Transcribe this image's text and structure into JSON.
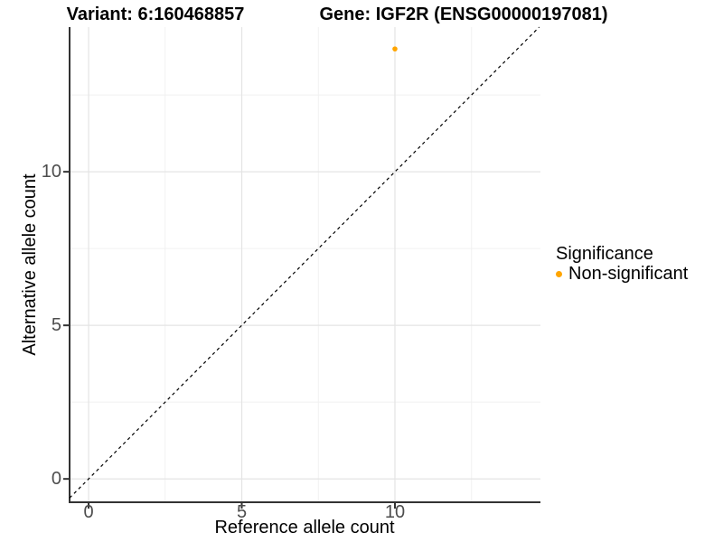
{
  "titles": {
    "left": "Variant: 6:160468857",
    "right": "Gene: IGF2R (ENSG00000197081)"
  },
  "chart_data": {
    "type": "scatter",
    "title_left": "Variant: 6:160468857",
    "title_right": "Gene: IGF2R (ENSG00000197081)",
    "xlabel": "Reference allele count",
    "ylabel": "Alternative allele count",
    "xlim": [
      -0.62,
      14.75
    ],
    "ylim": [
      -0.76,
      14.71
    ],
    "x_ticks": [
      0,
      5,
      10
    ],
    "y_ticks": [
      0,
      5,
      10
    ],
    "x_minor_ticks": [
      2.5,
      7.5,
      12.5
    ],
    "y_minor_ticks": [
      2.5,
      7.5,
      12.5
    ],
    "grid": true,
    "points": [
      {
        "x": 10,
        "y": 14,
        "series": "Non-significant"
      }
    ],
    "reference_line": {
      "slope": 1,
      "intercept": 0,
      "style": "dashed",
      "color": "#000000"
    },
    "legend": {
      "title": "Significance",
      "position": "right",
      "items": [
        {
          "label": "Non-significant",
          "color": "#FFA500"
        }
      ]
    },
    "colors": {
      "point": "#FFA500",
      "axis_line": "#333333",
      "tick_mark": "#333333",
      "tick_text": "#4d4d4d",
      "grid_major": "#e4e4e4",
      "grid_minor": "#f1f1f1",
      "background": "#ffffff"
    }
  }
}
